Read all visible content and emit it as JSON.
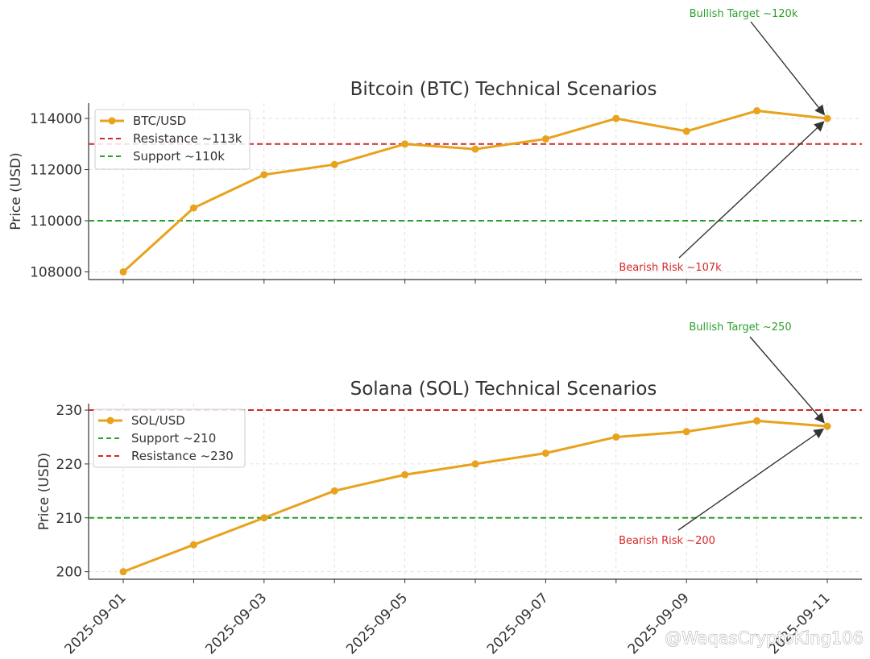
{
  "watermark": "@WaqasCryptoKing106",
  "chart_data": [
    {
      "type": "line",
      "title": "Bitcoin (BTC) Technical Scenarios",
      "xlabel": "",
      "ylabel": "Price (USD)",
      "x": [
        "2025-09-01",
        "2025-09-02",
        "2025-09-03",
        "2025-09-04",
        "2025-09-05",
        "2025-09-06",
        "2025-09-07",
        "2025-09-08",
        "2025-09-09",
        "2025-09-10",
        "2025-09-11"
      ],
      "xticks": [
        "2025-09-01",
        "2025-09-03",
        "2025-09-05",
        "2025-09-07",
        "2025-09-09",
        "2025-09-11"
      ],
      "yticks": [
        108000,
        110000,
        112000,
        114000
      ],
      "ylim": [
        107700,
        114600
      ],
      "grid": true,
      "legend_position": "upper-left",
      "series": [
        {
          "name": "BTC/USD",
          "color": "#e8a21d",
          "values": [
            108000,
            110500,
            111800,
            112200,
            113000,
            112800,
            113200,
            114000,
            113500,
            114300,
            114000
          ]
        }
      ],
      "reference_lines": [
        {
          "name": "Resistance ~113k",
          "value": 113000,
          "color": "#d62728"
        },
        {
          "name": "Support ~110k",
          "value": 110000,
          "color": "#2ca02c"
        }
      ],
      "annotations": [
        {
          "text": "Bullish Target ~120k",
          "color": "#2ca02c",
          "points_to": [
            "2025-09-11",
            114000
          ]
        },
        {
          "text": "Bearish Risk ~107k",
          "color": "#d62728",
          "points_to": [
            "2025-09-11",
            114000
          ]
        }
      ]
    },
    {
      "type": "line",
      "title": "Solana (SOL) Technical Scenarios",
      "xlabel": "",
      "ylabel": "Price (USD)",
      "x": [
        "2025-09-01",
        "2025-09-02",
        "2025-09-03",
        "2025-09-04",
        "2025-09-05",
        "2025-09-06",
        "2025-09-07",
        "2025-09-08",
        "2025-09-09",
        "2025-09-10",
        "2025-09-11"
      ],
      "xticks": [
        "2025-09-01",
        "2025-09-03",
        "2025-09-05",
        "2025-09-07",
        "2025-09-09",
        "2025-09-11"
      ],
      "yticks": [
        200,
        210,
        220,
        230
      ],
      "ylim": [
        198.6,
        231.2
      ],
      "grid": true,
      "legend_position": "upper-left",
      "series": [
        {
          "name": "SOL/USD",
          "color": "#e8a21d",
          "values": [
            200,
            205,
            210,
            215,
            218,
            220,
            222,
            225,
            226,
            228,
            227
          ]
        }
      ],
      "reference_lines": [
        {
          "name": "Support ~210",
          "value": 210,
          "color": "#2ca02c"
        },
        {
          "name": "Resistance ~230",
          "value": 230,
          "color": "#d62728"
        }
      ],
      "annotations": [
        {
          "text": "Bullish Target ~250",
          "color": "#2ca02c",
          "points_to": [
            "2025-09-11",
            227
          ]
        },
        {
          "text": "Bearish Risk ~200",
          "color": "#d62728",
          "points_to": [
            "2025-09-11",
            227
          ]
        }
      ]
    }
  ]
}
